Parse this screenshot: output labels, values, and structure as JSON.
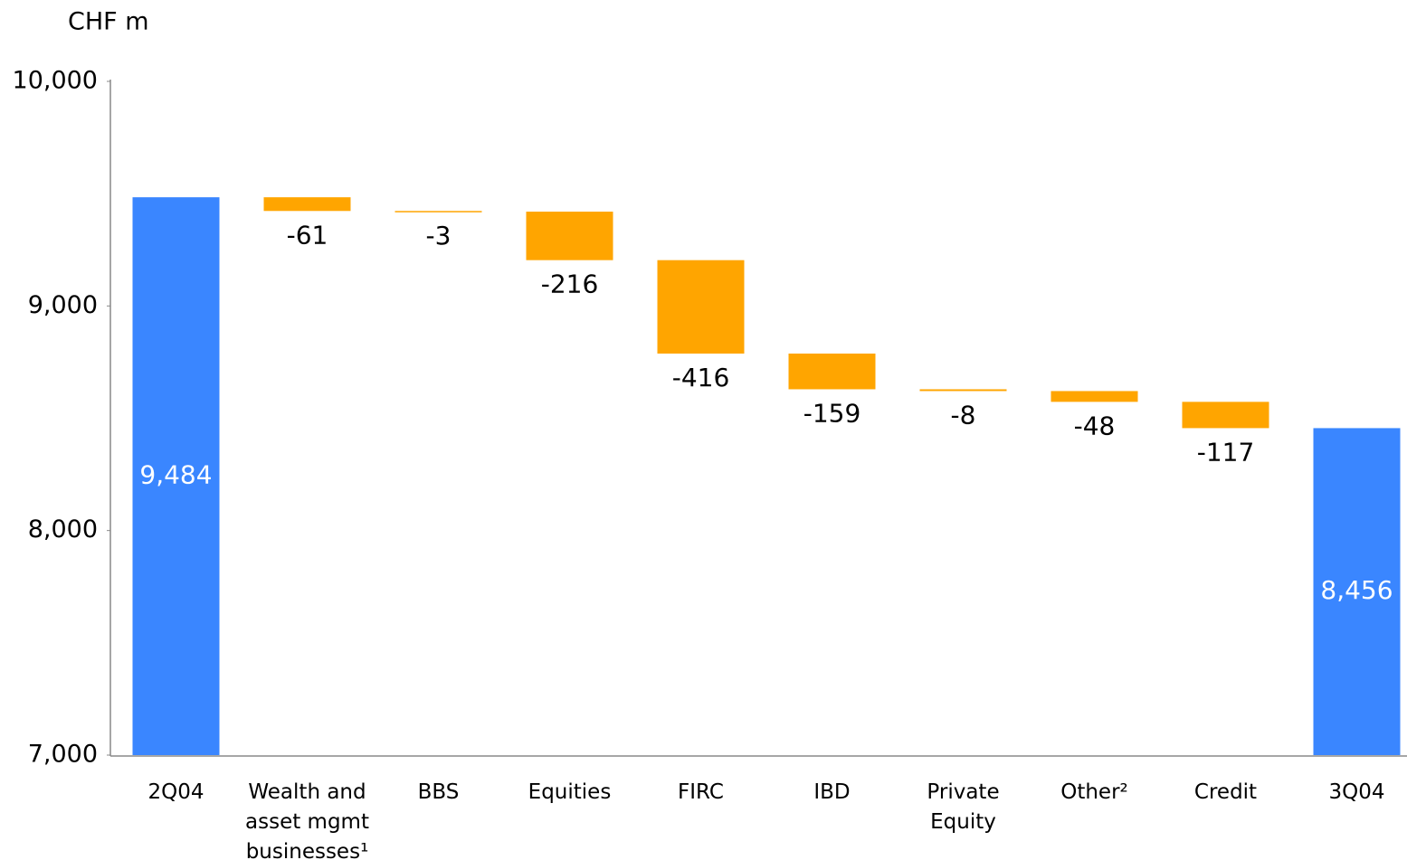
{
  "chart_data": {
    "type": "waterfall",
    "y_label": "CHF m",
    "categories": [
      "2Q04",
      "Wealth and asset mgmt businesses¹",
      "BBS",
      "Equities",
      "FIRC",
      "IBD",
      "Private Equity",
      "Other²",
      "Credit",
      "3Q04"
    ],
    "values": [
      9484,
      -61,
      -3,
      -216,
      -416,
      -159,
      -8,
      -48,
      -117,
      8456
    ],
    "value_labels": [
      "9,484",
      "-61",
      "-3",
      "-216",
      "-416",
      "-159",
      "-8",
      "-48",
      "-117",
      "8,456"
    ],
    "total_color": "#3a86ff",
    "change_color": "#ffa500",
    "ylim": [
      7000,
      10000
    ],
    "yticks": [
      {
        "value": 7000,
        "label": "7,000"
      },
      {
        "value": 8000,
        "label": "8,000"
      },
      {
        "value": 9000,
        "label": "9,000"
      },
      {
        "value": 10000,
        "label": "10,000"
      }
    ],
    "grid": false
  }
}
